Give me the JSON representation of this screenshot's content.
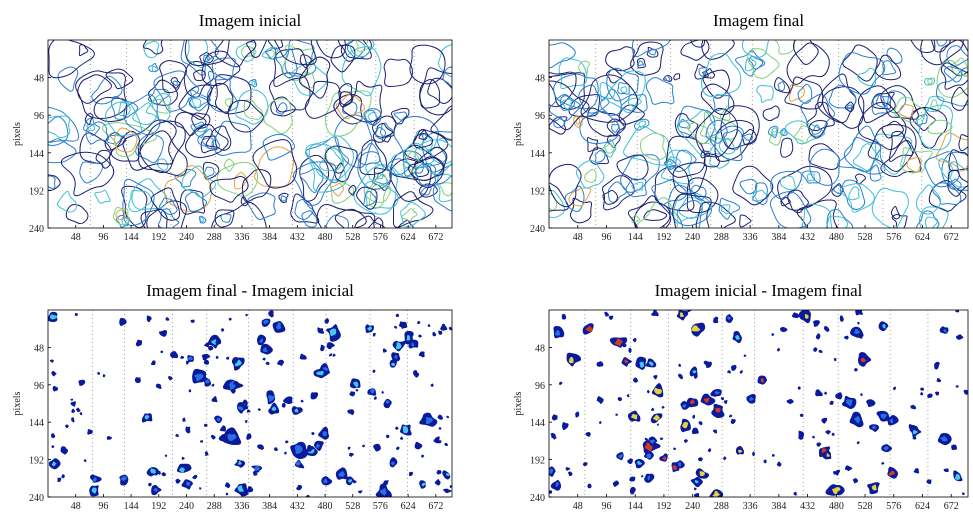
{
  "chart_data": [
    {
      "type": "contour",
      "title": "Imagem inicial",
      "ylabel": "pixels",
      "xlim": [
        0,
        700
      ],
      "ylim": [
        0,
        240
      ],
      "xticks": [
        48,
        96,
        144,
        192,
        240,
        288,
        336,
        384,
        432,
        480,
        528,
        576,
        624,
        672
      ],
      "yticks": [
        48,
        96,
        144,
        192,
        240
      ],
      "colors": [
        "#1b1f6e",
        "#2a7fd0",
        "#3cc0d8",
        "#7fd27a",
        "#e6a23c"
      ]
    },
    {
      "type": "contour",
      "title": "Imagem final",
      "ylabel": "pixels",
      "xlim": [
        0,
        700
      ],
      "ylim": [
        0,
        240
      ],
      "xticks": [
        48,
        96,
        144,
        192,
        240,
        288,
        336,
        384,
        432,
        480,
        528,
        576,
        624,
        672
      ],
      "yticks": [
        48,
        96,
        144,
        192,
        240
      ],
      "colors": [
        "#1b1f6e",
        "#2a7fd0",
        "#3cc0d8",
        "#7fd27a",
        "#e6a23c"
      ]
    },
    {
      "type": "contour",
      "title": "Imagem final - Imagem inicial",
      "ylabel": "pixels",
      "xlim": [
        0,
        700
      ],
      "ylim": [
        0,
        240
      ],
      "xticks": [
        48,
        96,
        144,
        192,
        240,
        288,
        336,
        384,
        432,
        480,
        528,
        576,
        624,
        672
      ],
      "yticks": [
        48,
        96,
        144,
        192,
        240
      ],
      "colors": [
        "#0a1a9c",
        "#2a6fe0",
        "#46c8e8"
      ]
    },
    {
      "type": "contour",
      "title": "Imagem inicial - Imagem final",
      "ylabel": "pixels",
      "xlim": [
        0,
        700
      ],
      "ylim": [
        0,
        240
      ],
      "xticks": [
        48,
        96,
        144,
        192,
        240,
        288,
        336,
        384,
        432,
        480,
        528,
        576,
        624,
        672
      ],
      "yticks": [
        48,
        96,
        144,
        192,
        240
      ],
      "colors": [
        "#0a1a9c",
        "#2a6fe0",
        "#46c8e8",
        "#e6d23c",
        "#d83a1e"
      ]
    }
  ]
}
